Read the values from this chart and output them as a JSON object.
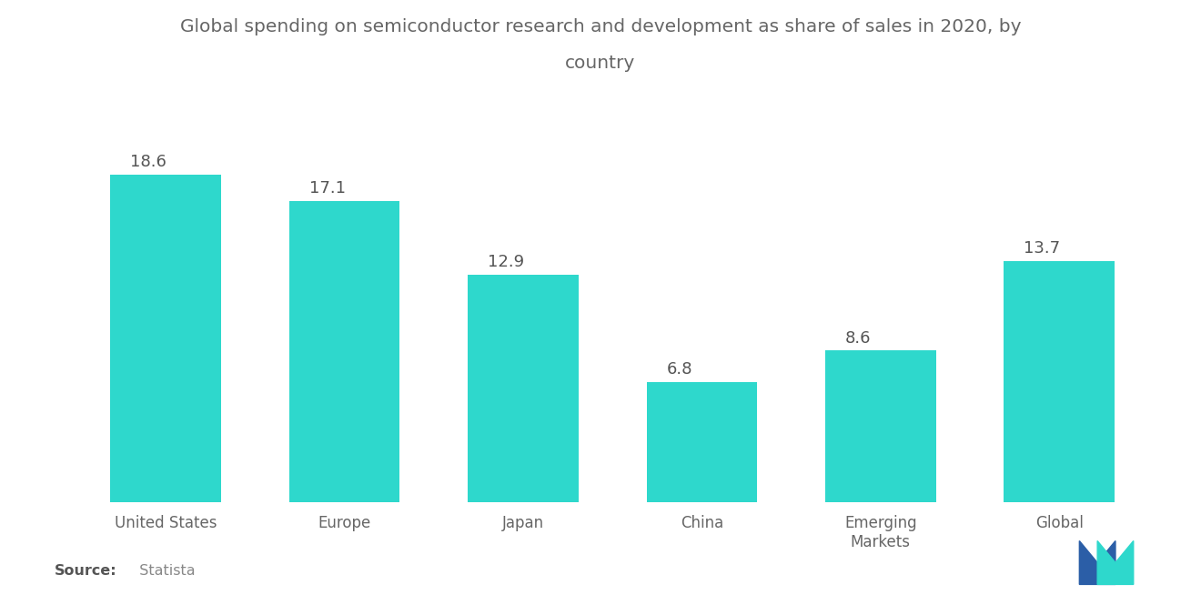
{
  "categories": [
    "United States",
    "Europe",
    "Japan",
    "China",
    "Emerging\nMarkets",
    "Global"
  ],
  "values": [
    18.6,
    17.1,
    12.9,
    6.8,
    8.6,
    13.7
  ],
  "bar_color": "#2ED8CC",
  "title_line1": "Global spending on semiconductor research and development as share of sales in 2020, by",
  "title_line2": "country",
  "title_fontsize": 14.5,
  "title_color": "#666666",
  "value_fontsize": 13,
  "value_color": "#555555",
  "tick_fontsize": 12,
  "tick_color": "#666666",
  "source_bold": "Source:",
  "source_light": "  Statista",
  "source_fontsize": 11.5,
  "source_color_bold": "#555555",
  "source_color_light": "#888888",
  "background_color": "#ffffff",
  "ylim": [
    0,
    23
  ],
  "bar_width": 0.62,
  "logo_blue": "#2B5EA7",
  "logo_teal": "#2ED8CC"
}
